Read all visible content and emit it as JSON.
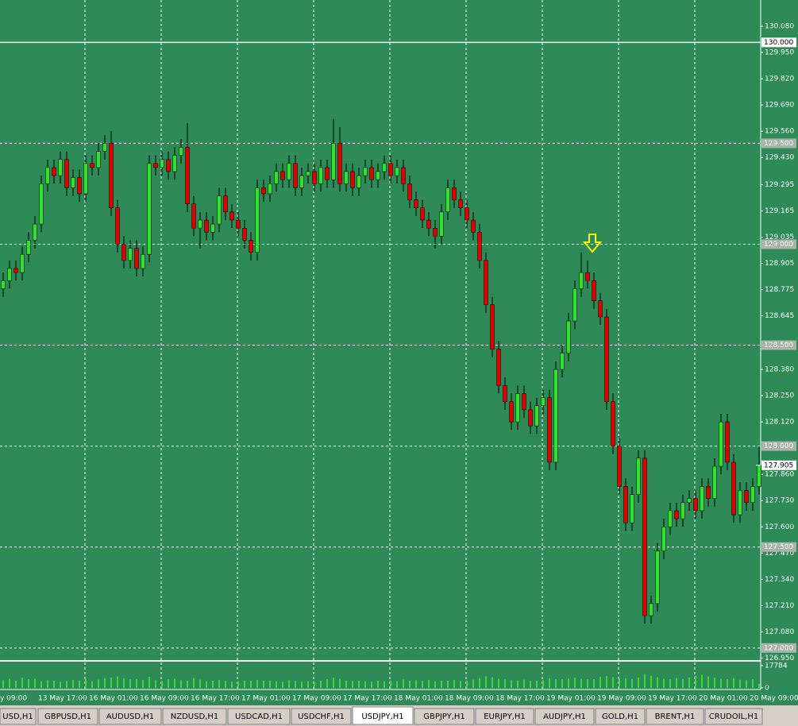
{
  "chart_data": {
    "type": "candlestick",
    "background": "#2e8b57",
    "up_color": "#32e032",
    "down_color": "#e00000",
    "wick_color": "#000000",
    "volume_color": "#32e032",
    "categories": [
      "y 09:00",
      null,
      null,
      null,
      null,
      null,
      "13 May 17:00",
      null,
      null,
      null,
      null,
      null,
      null,
      null,
      "16 May 01:00",
      null,
      null,
      null,
      null,
      null,
      null,
      null,
      "16 May 09:00",
      null,
      null,
      null,
      null,
      null,
      null,
      null,
      "16 May 17:00",
      null,
      null,
      null,
      null,
      null,
      null,
      null,
      "17 May 01:00",
      null,
      null,
      null,
      null,
      null,
      null,
      null,
      "17 May 09:00",
      null,
      null,
      null,
      null,
      null,
      null,
      null,
      "17 May 17:00",
      null,
      null,
      null,
      null,
      null,
      null,
      null,
      "18 May 01:00",
      null,
      null,
      null,
      null,
      null,
      null,
      null,
      "18 May 09:00",
      null,
      null,
      null,
      null,
      null,
      null,
      null,
      "18 May 17:00",
      null,
      null,
      null,
      null,
      null,
      null,
      null,
      "19 May 01:00",
      null,
      null,
      null,
      null,
      null,
      null,
      null,
      "19 May 09:00",
      null,
      null,
      null,
      null,
      null,
      null,
      null,
      "19 May 17:00",
      null,
      null,
      null,
      null,
      null,
      null,
      null,
      "20 May 01:00",
      null,
      null,
      null,
      null,
      null,
      null,
      null,
      "20 May 09:00",
      null
    ],
    "open": [
      128.78,
      128.82,
      128.88,
      128.86,
      128.95,
      129.02,
      129.1,
      129.3,
      129.38,
      129.34,
      129.42,
      129.28,
      129.33,
      129.25,
      129.4,
      129.38,
      129.46,
      129.5,
      129.18,
      129.0,
      128.92,
      128.98,
      128.88,
      128.95,
      129.4,
      129.38,
      129.42,
      129.36,
      129.44,
      129.48,
      129.2,
      129.08,
      129.12,
      129.06,
      129.1,
      129.24,
      129.16,
      129.12,
      129.08,
      129.02,
      128.96,
      129.28,
      129.25,
      129.3,
      129.36,
      129.32,
      129.4,
      129.28,
      129.34,
      129.36,
      129.3,
      129.38,
      129.32,
      129.5,
      129.3,
      129.36,
      129.28,
      129.34,
      129.38,
      129.32,
      129.36,
      129.4,
      129.34,
      129.38,
      129.3,
      129.22,
      129.18,
      129.12,
      129.08,
      129.04,
      129.16,
      129.28,
      129.22,
      129.18,
      129.12,
      129.06,
      128.92,
      128.7,
      128.48,
      128.3,
      128.22,
      128.12,
      128.26,
      128.18,
      128.1,
      128.2,
      128.24,
      127.92,
      128.38,
      128.46,
      128.62,
      128.78,
      128.86,
      128.82,
      128.72,
      128.64,
      128.22,
      128.0,
      127.8,
      127.62,
      127.76,
      127.94,
      127.16,
      127.22,
      127.48,
      127.6,
      127.68,
      127.64,
      127.72,
      127.74,
      127.68,
      127.8,
      127.74,
      127.9,
      128.12,
      127.92,
      127.66,
      127.78,
      127.72,
      127.8
    ],
    "high": [
      128.86,
      128.92,
      128.92,
      128.99,
      129.06,
      129.14,
      129.34,
      129.42,
      129.42,
      129.46,
      129.46,
      129.37,
      129.37,
      129.44,
      129.44,
      129.5,
      129.54,
      129.56,
      129.22,
      129.04,
      129.02,
      129.02,
      128.99,
      129.44,
      129.44,
      129.46,
      129.46,
      129.48,
      129.52,
      129.6,
      129.24,
      129.16,
      129.16,
      129.14,
      129.28,
      129.28,
      129.2,
      129.16,
      129.12,
      129.06,
      129.32,
      129.32,
      129.34,
      129.4,
      129.4,
      129.44,
      129.44,
      129.38,
      129.4,
      129.4,
      129.42,
      129.42,
      129.62,
      129.58,
      129.4,
      129.4,
      129.38,
      129.42,
      129.42,
      129.4,
      129.44,
      129.44,
      129.42,
      129.42,
      129.34,
      129.26,
      129.22,
      129.16,
      129.12,
      129.2,
      129.32,
      129.32,
      129.26,
      129.22,
      129.16,
      129.1,
      128.96,
      128.74,
      128.52,
      128.34,
      128.26,
      128.3,
      128.3,
      128.22,
      128.24,
      128.28,
      128.28,
      128.42,
      128.5,
      128.66,
      128.82,
      128.96,
      128.92,
      128.86,
      128.76,
      128.68,
      128.26,
      128.04,
      127.84,
      127.8,
      127.98,
      127.98,
      127.26,
      127.52,
      127.64,
      127.72,
      127.72,
      127.76,
      127.78,
      127.78,
      127.84,
      127.84,
      127.94,
      128.16,
      128.16,
      127.96,
      127.82,
      127.82,
      127.84,
      128.0
    ],
    "low": [
      128.74,
      128.78,
      128.82,
      128.82,
      128.91,
      128.98,
      129.06,
      129.26,
      129.3,
      129.3,
      129.24,
      129.24,
      129.21,
      129.21,
      129.34,
      129.34,
      129.42,
      129.14,
      128.96,
      128.88,
      128.88,
      128.84,
      128.84,
      128.91,
      129.34,
      129.34,
      129.32,
      129.32,
      129.4,
      129.16,
      129.04,
      128.98,
      129.02,
      129.02,
      129.06,
      129.12,
      129.08,
      129.04,
      128.98,
      128.92,
      128.92,
      129.21,
      129.21,
      129.26,
      129.28,
      129.28,
      129.24,
      129.24,
      129.3,
      129.26,
      129.26,
      129.28,
      129.28,
      129.26,
      129.26,
      129.24,
      129.24,
      129.3,
      129.28,
      129.28,
      129.32,
      129.3,
      129.3,
      129.26,
      129.18,
      129.14,
      129.08,
      129.04,
      128.98,
      129.0,
      129.12,
      129.18,
      129.14,
      129.08,
      129.02,
      128.88,
      128.66,
      128.44,
      128.26,
      128.18,
      128.08,
      128.08,
      128.14,
      128.06,
      128.06,
      128.16,
      127.88,
      127.88,
      128.34,
      128.42,
      128.58,
      128.74,
      128.78,
      128.68,
      128.6,
      128.18,
      127.96,
      127.76,
      127.58,
      127.58,
      127.72,
      127.12,
      127.12,
      127.18,
      127.44,
      127.56,
      127.6,
      127.6,
      127.68,
      127.64,
      127.64,
      127.7,
      127.7,
      127.86,
      127.88,
      127.62,
      127.62,
      127.68,
      127.68,
      127.76
    ],
    "close": [
      128.82,
      128.88,
      128.86,
      128.95,
      129.02,
      129.1,
      129.3,
      129.38,
      129.34,
      129.42,
      129.28,
      129.33,
      129.25,
      129.4,
      129.38,
      129.46,
      129.5,
      129.18,
      129.0,
      128.92,
      128.98,
      128.88,
      128.95,
      129.4,
      129.38,
      129.42,
      129.36,
      129.44,
      129.48,
      129.2,
      129.08,
      129.12,
      129.06,
      129.1,
      129.24,
      129.16,
      129.12,
      129.08,
      129.02,
      128.96,
      129.28,
      129.25,
      129.3,
      129.36,
      129.32,
      129.4,
      129.28,
      129.34,
      129.36,
      129.3,
      129.38,
      129.32,
      129.5,
      129.3,
      129.36,
      129.28,
      129.34,
      129.38,
      129.32,
      129.36,
      129.4,
      129.34,
      129.38,
      129.3,
      129.22,
      129.18,
      129.12,
      129.08,
      129.04,
      129.16,
      129.28,
      129.22,
      129.18,
      129.12,
      129.06,
      128.92,
      128.7,
      128.48,
      128.3,
      128.22,
      128.12,
      128.26,
      128.18,
      128.1,
      128.2,
      128.24,
      127.92,
      128.38,
      128.46,
      128.62,
      128.78,
      128.86,
      128.82,
      128.72,
      128.64,
      128.22,
      128.0,
      127.8,
      127.62,
      127.76,
      127.94,
      127.16,
      127.22,
      127.48,
      127.6,
      127.68,
      127.64,
      127.72,
      127.74,
      127.68,
      127.8,
      127.74,
      127.9,
      128.12,
      127.92,
      127.66,
      127.78,
      127.72,
      127.8,
      127.905
    ],
    "volume": [
      6200,
      7400,
      5800,
      8100,
      6900,
      7300,
      5200,
      6100,
      5600,
      4800,
      5400,
      6300,
      5900,
      7100,
      5200,
      6600,
      7800,
      8400,
      9100,
      7600,
      6800,
      7200,
      6400,
      8900,
      6100,
      5400,
      6800,
      7300,
      6200,
      5800,
      7900,
      6600,
      5100,
      5700,
      6300,
      5500,
      4900,
      5300,
      6000,
      5800,
      6400,
      5600,
      5900,
      5200,
      4800,
      6100,
      5500,
      5000,
      5300,
      4700,
      5600,
      6900,
      8100,
      7400,
      6000,
      5400,
      5800,
      5100,
      4900,
      5600,
      5200,
      5900,
      5300,
      6700,
      5800,
      6200,
      5500,
      6400,
      5100,
      6000,
      5700,
      6300,
      5400,
      5900,
      6600,
      7800,
      9200,
      8600,
      7400,
      6800,
      6100,
      5900,
      6600,
      5500,
      5800,
      6300,
      7600,
      7100,
      6900,
      7500,
      8200,
      7400,
      6800,
      7000,
      8800,
      9500,
      8700,
      8100,
      7600,
      7200,
      8400,
      11200,
      9800,
      8600,
      7400,
      6800,
      7900,
      7200,
      8300,
      9600,
      10400,
      9100,
      8200,
      7400,
      6900,
      7800,
      6500,
      6200,
      7100,
      3200
    ],
    "ylim": [
      126.94,
      130.21
    ],
    "yticks": [
      {
        "value": 130.08,
        "label": "130.080"
      },
      {
        "value": 129.95,
        "label": "129.950"
      },
      {
        "value": 129.82,
        "label": "129.820"
      },
      {
        "value": 129.69,
        "label": "129.690"
      },
      {
        "value": 129.56,
        "label": "129.560"
      },
      {
        "value": 129.43,
        "label": "129.430"
      },
      {
        "value": 129.295,
        "label": "129.295"
      },
      {
        "value": 129.165,
        "label": "129.165"
      },
      {
        "value": 129.035,
        "label": "129.035"
      },
      {
        "value": 128.905,
        "label": "128.905"
      },
      {
        "value": 128.775,
        "label": "128.775"
      },
      {
        "value": 128.645,
        "label": "128.645"
      },
      {
        "value": 128.38,
        "label": "128.380"
      },
      {
        "value": 128.25,
        "label": "128.250"
      },
      {
        "value": 128.12,
        "label": "128.120"
      },
      {
        "value": 127.86,
        "label": "127.860"
      },
      {
        "value": 127.73,
        "label": "127.730"
      },
      {
        "value": 127.6,
        "label": "127.600"
      },
      {
        "value": 127.47,
        "label": "127.470"
      },
      {
        "value": 127.34,
        "label": "127.340"
      },
      {
        "value": 127.21,
        "label": "127.210"
      },
      {
        "value": 127.08,
        "label": "127.080"
      },
      {
        "value": 126.95,
        "label": "126.950"
      }
    ],
    "levels": [
      {
        "value": 130,
        "label": "130.000"
      },
      {
        "value": 129.5,
        "label": "129.500"
      },
      {
        "value": 129,
        "label": "129.000"
      },
      {
        "value": 128.5,
        "label": "128.500"
      },
      {
        "value": 128,
        "label": "128.000"
      },
      {
        "value": 127.5,
        "label": "127.500"
      },
      {
        "value": 127,
        "label": "127.000"
      }
    ],
    "current": {
      "value": 127.905,
      "label": "127.905"
    },
    "volume_ylim": [
      0,
      17784
    ],
    "volume_yticks": [
      17784,
      0
    ]
  },
  "tabs": [
    {
      "label": "USD,H1"
    },
    {
      "label": "GBPUSD,H1"
    },
    {
      "label": "AUDUSD,H1"
    },
    {
      "label": "NZDUSD,H1"
    },
    {
      "label": "USDCAD,H1"
    },
    {
      "label": "USDCHF,H1"
    },
    {
      "label": "USDJPY,H1",
      "active": true
    },
    {
      "label": "GBPJPY,H1"
    },
    {
      "label": "EURJPY,H1"
    },
    {
      "label": "AUDJPY,H1"
    },
    {
      "label": "GOLD,H1"
    },
    {
      "label": "BRENT,H1"
    },
    {
      "label": "CRUDOIL,H1"
    }
  ]
}
